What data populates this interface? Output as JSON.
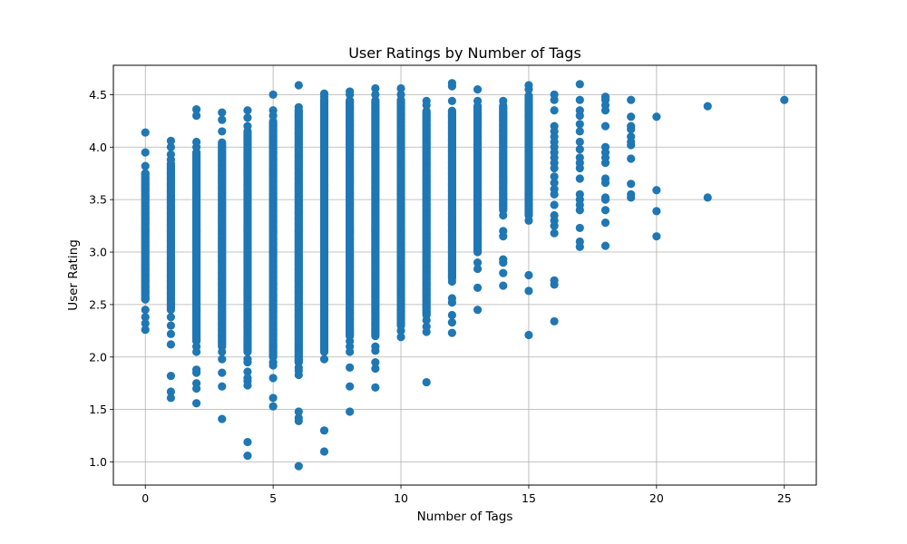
{
  "chart_data": {
    "type": "scatter",
    "title": "User Ratings by Number of Tags",
    "xlabel": "Number of Tags",
    "ylabel": "User Rating",
    "xlim": [
      -1.25,
      26.25
    ],
    "ylim": [
      0.78,
      4.78
    ],
    "xticks": [
      0,
      5,
      10,
      15,
      20,
      25
    ],
    "yticks": [
      1.0,
      1.5,
      2.0,
      2.5,
      3.0,
      3.5,
      4.0,
      4.5
    ],
    "ytick_labels": [
      "1.0",
      "1.5",
      "2.0",
      "2.5",
      "3.0",
      "3.5",
      "4.0",
      "4.5"
    ],
    "grid": true,
    "marker_color": "#1f77b4",
    "columns": [
      {
        "x": 0,
        "dense_range": [
          2.55,
          3.75
        ],
        "points": [
          4.14,
          3.95,
          3.82,
          3.75,
          2.55,
          2.45,
          2.38,
          2.32,
          2.26
        ]
      },
      {
        "x": 1,
        "dense_range": [
          2.45,
          3.85
        ],
        "points": [
          4.06,
          4.0,
          3.93,
          3.88,
          2.38,
          2.3,
          2.22,
          2.12,
          1.82,
          1.67,
          1.61
        ]
      },
      {
        "x": 2,
        "dense_range": [
          2.15,
          3.95
        ],
        "points": [
          4.36,
          4.3,
          4.05,
          4.0,
          2.1,
          2.05,
          1.88,
          1.85,
          1.75,
          1.7,
          1.56
        ]
      },
      {
        "x": 3,
        "dense_range": [
          2.1,
          4.05
        ],
        "points": [
          4.33,
          4.26,
          4.15,
          2.05,
          1.98,
          1.85,
          1.72,
          1.41
        ]
      },
      {
        "x": 4,
        "dense_range": [
          2.05,
          4.15
        ],
        "points": [
          4.35,
          4.28,
          4.2,
          1.98,
          1.95,
          1.86,
          1.8,
          1.77,
          1.73,
          1.19,
          1.06
        ]
      },
      {
        "x": 5,
        "dense_range": [
          2.0,
          4.25
        ],
        "points": [
          4.5,
          4.35,
          4.3,
          1.95,
          1.92,
          1.8,
          1.61,
          1.53
        ]
      },
      {
        "x": 6,
        "dense_range": [
          1.95,
          4.35
        ],
        "points": [
          4.59,
          4.38,
          1.9,
          1.87,
          1.83,
          1.48,
          1.42,
          1.39,
          0.96
        ]
      },
      {
        "x": 7,
        "dense_range": [
          2.05,
          4.45
        ],
        "points": [
          4.51,
          4.48,
          1.98,
          1.3,
          1.1
        ]
      },
      {
        "x": 8,
        "dense_range": [
          2.2,
          4.45
        ],
        "points": [
          4.53,
          4.5,
          2.15,
          2.1,
          2.05,
          1.9,
          1.72,
          1.48
        ]
      },
      {
        "x": 9,
        "dense_range": [
          2.2,
          4.45
        ],
        "points": [
          4.56,
          4.5,
          2.1,
          2.06,
          1.95,
          1.89,
          1.71
        ]
      },
      {
        "x": 10,
        "dense_range": [
          2.3,
          4.45
        ],
        "points": [
          4.56,
          4.5,
          2.25,
          2.19
        ]
      },
      {
        "x": 11,
        "dense_range": [
          2.4,
          4.35
        ],
        "points": [
          4.44,
          4.4,
          2.35,
          2.29,
          2.24,
          1.76
        ]
      },
      {
        "x": 12,
        "dense_range": [
          2.75,
          4.35
        ],
        "points": [
          4.61,
          4.58,
          4.44,
          2.72,
          2.56,
          2.52,
          2.4,
          2.33,
          2.23
        ]
      },
      {
        "x": 13,
        "dense_range": [
          3.0,
          4.4
        ],
        "points": [
          4.55,
          4.44,
          2.9,
          2.84,
          2.66,
          2.45
        ]
      },
      {
        "x": 14,
        "dense_range": [
          3.4,
          4.4
        ],
        "points": [
          4.44,
          3.35,
          3.2,
          3.15,
          2.93,
          2.9,
          2.8,
          2.68
        ]
      },
      {
        "x": 15,
        "dense_range": [
          3.35,
          4.5
        ],
        "points": [
          4.59,
          4.55,
          3.3,
          2.78,
          2.63,
          2.21
        ]
      },
      {
        "x": 16,
        "points": [
          4.5,
          4.45,
          4.35,
          4.2,
          4.15,
          4.1,
          4.05,
          4.0,
          3.95,
          3.9,
          3.85,
          3.8,
          3.72,
          3.66,
          3.6,
          3.55,
          3.45,
          3.35,
          3.3,
          3.25,
          3.18,
          2.73,
          2.69,
          2.34
        ]
      },
      {
        "x": 17,
        "points": [
          4.6,
          4.45,
          4.35,
          4.3,
          4.22,
          4.15,
          4.05,
          3.98,
          3.9,
          3.85,
          3.8,
          3.7,
          3.55,
          3.5,
          3.45,
          3.4,
          3.23,
          3.1,
          3.05
        ]
      },
      {
        "x": 18,
        "points": [
          4.48,
          4.45,
          4.4,
          4.35,
          4.2,
          4.0,
          3.95,
          3.9,
          3.85,
          3.7,
          3.66,
          3.52,
          3.5,
          3.4,
          3.28,
          3.06
        ]
      },
      {
        "x": 19,
        "points": [
          4.45,
          4.29,
          4.2,
          4.17,
          4.1,
          4.05,
          4.02,
          3.89,
          3.65,
          3.55,
          3.52
        ]
      },
      {
        "x": 20,
        "points": [
          4.29,
          3.59,
          3.39,
          3.15
        ]
      },
      {
        "x": 22,
        "points": [
          4.39,
          3.52
        ]
      },
      {
        "x": 25,
        "points": [
          4.45
        ]
      }
    ]
  }
}
